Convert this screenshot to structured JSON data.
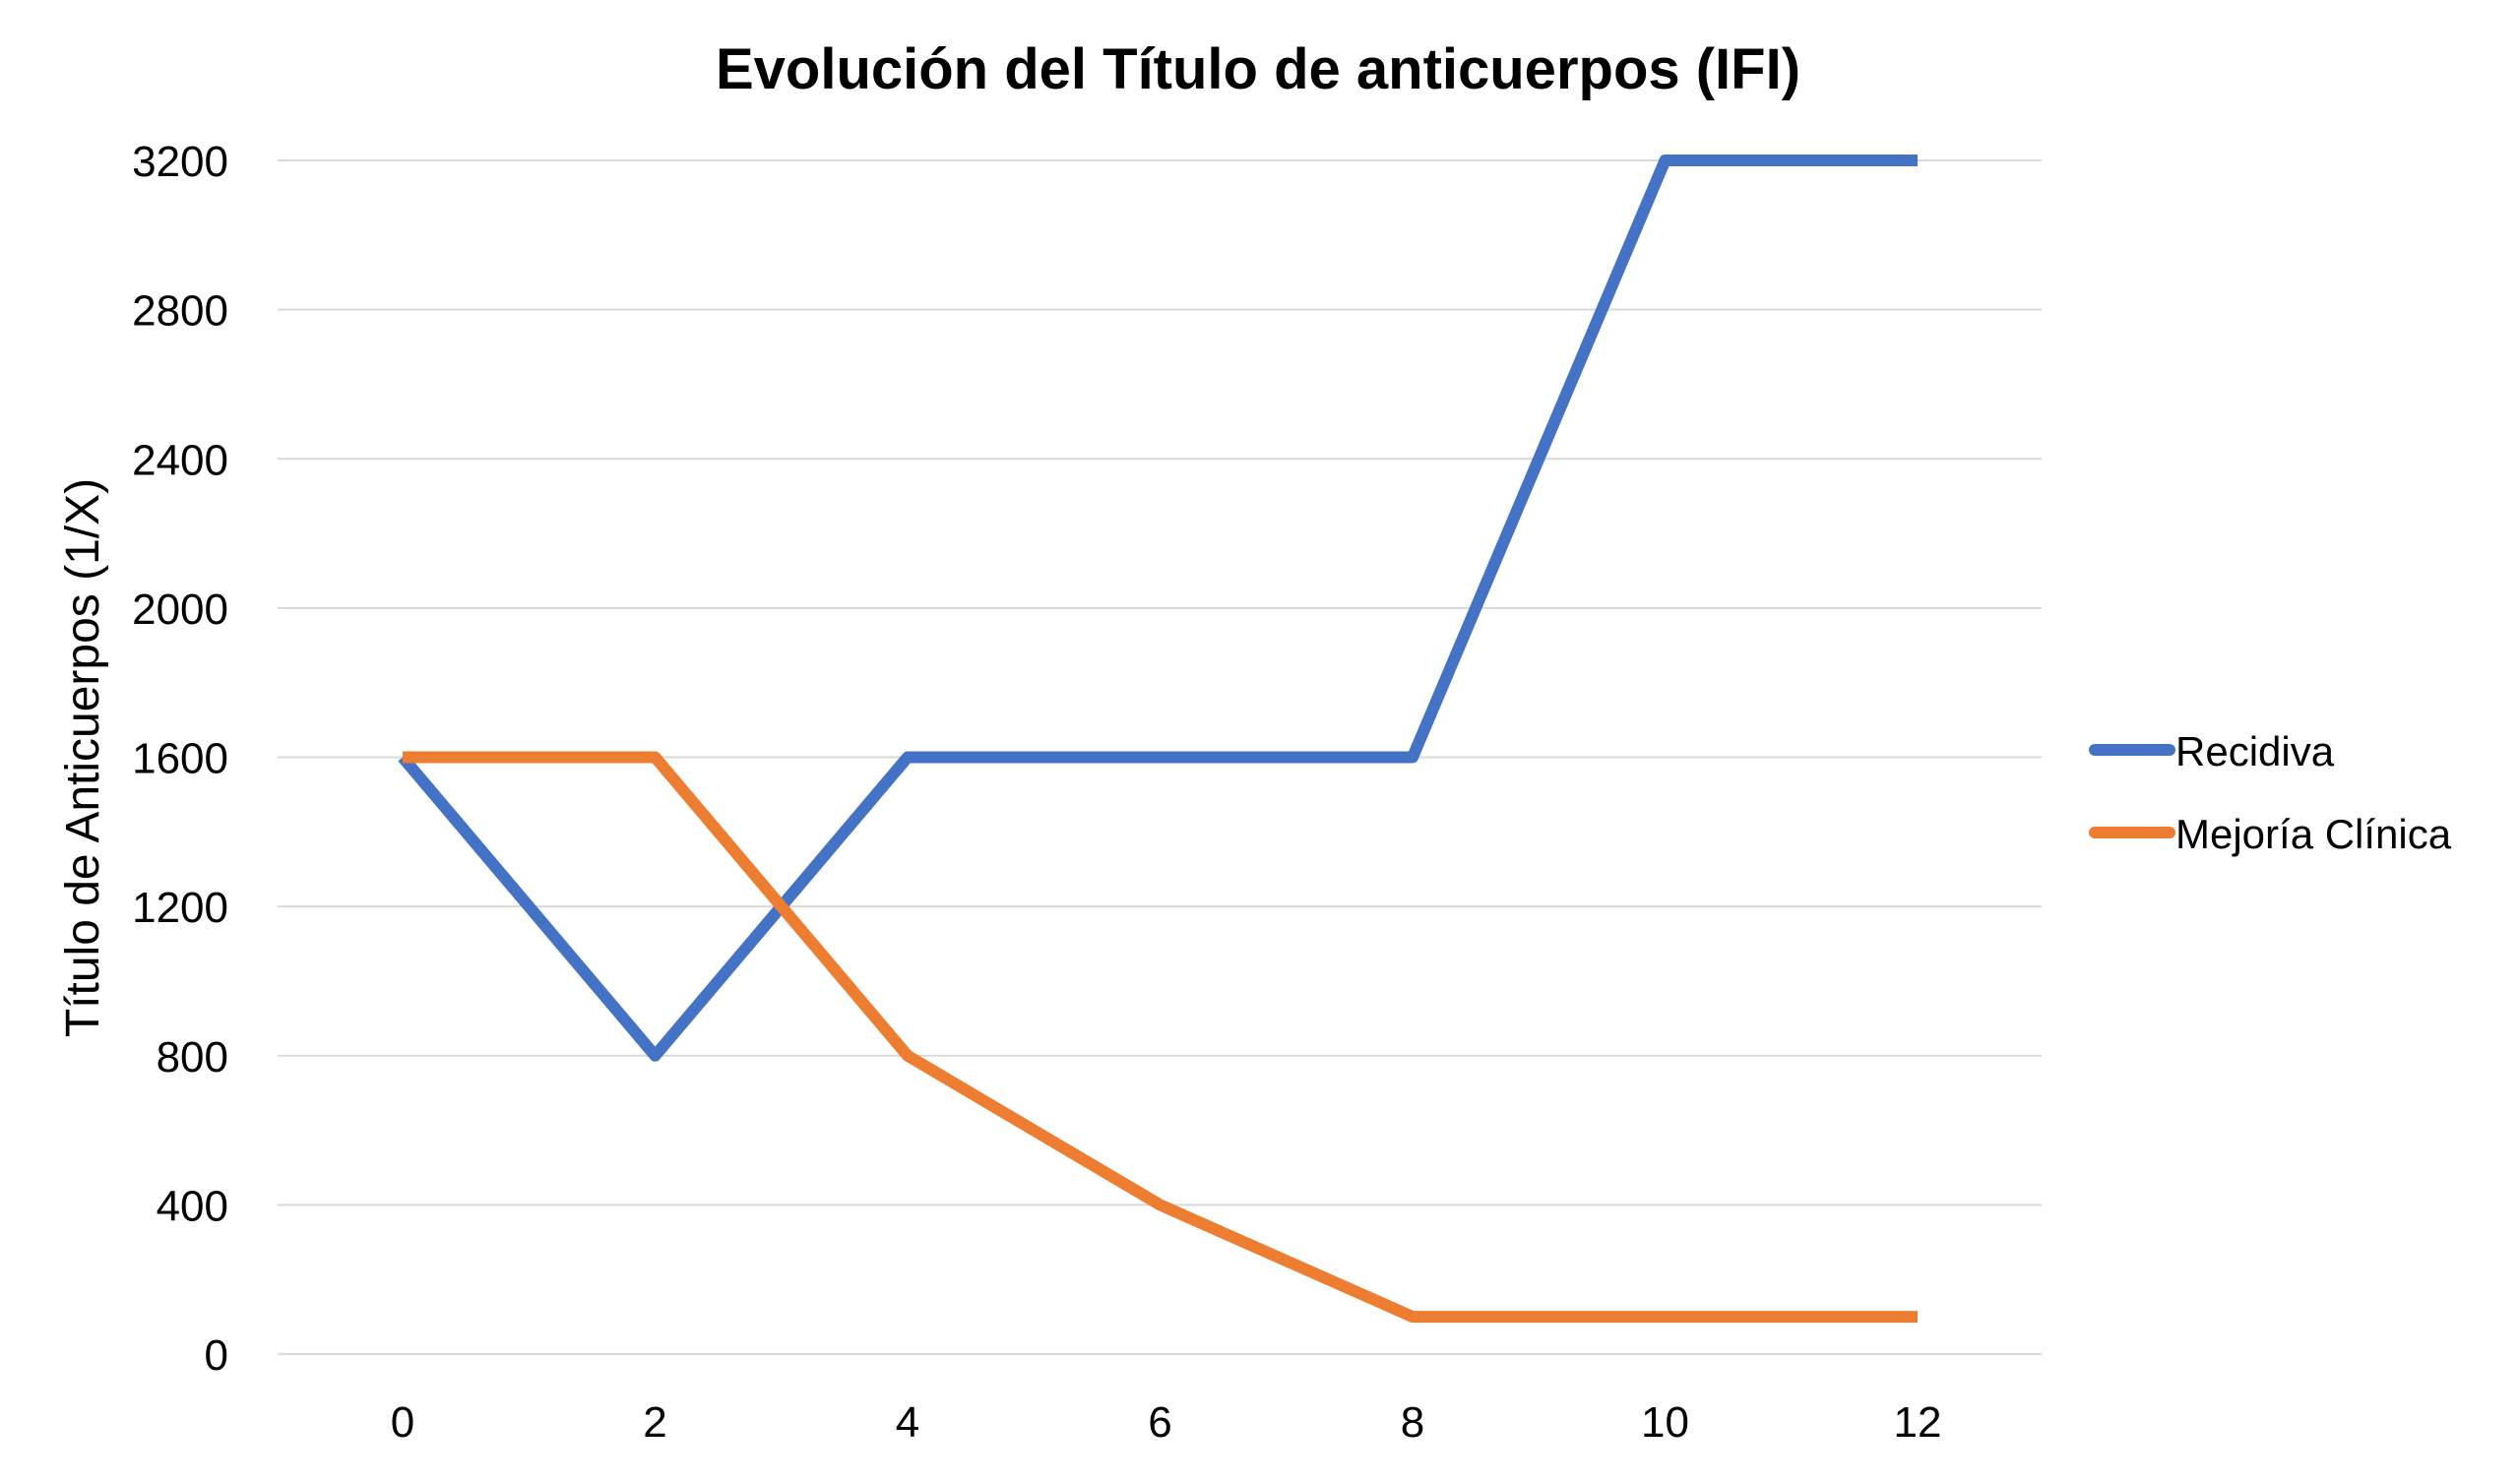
{
  "chart_data": {
    "type": "line",
    "title": "Evolución del Título de anticuerpos (IFI)",
    "xlabel": "",
    "ylabel": "Título de Anticuerpos (1/X)",
    "categories": [
      0,
      2,
      4,
      6,
      8,
      10,
      12
    ],
    "x_ticks": [
      "0",
      "2",
      "4",
      "6",
      "8",
      "10",
      "12"
    ],
    "y_ticks": [
      "0",
      "400",
      "800",
      "1200",
      "1600",
      "2000",
      "2400",
      "2800",
      "3200"
    ],
    "ylim": [
      0,
      3200
    ],
    "grid": true,
    "legend_position": "right",
    "series": [
      {
        "name": "Recidiva",
        "color": "#4472C4",
        "values": [
          1600,
          800,
          1600,
          1600,
          1600,
          3200,
          3200
        ]
      },
      {
        "name": "Mejoría Clínica",
        "color": "#ED7D31",
        "values": [
          1600,
          1600,
          800,
          400,
          100,
          100,
          100
        ]
      }
    ]
  }
}
